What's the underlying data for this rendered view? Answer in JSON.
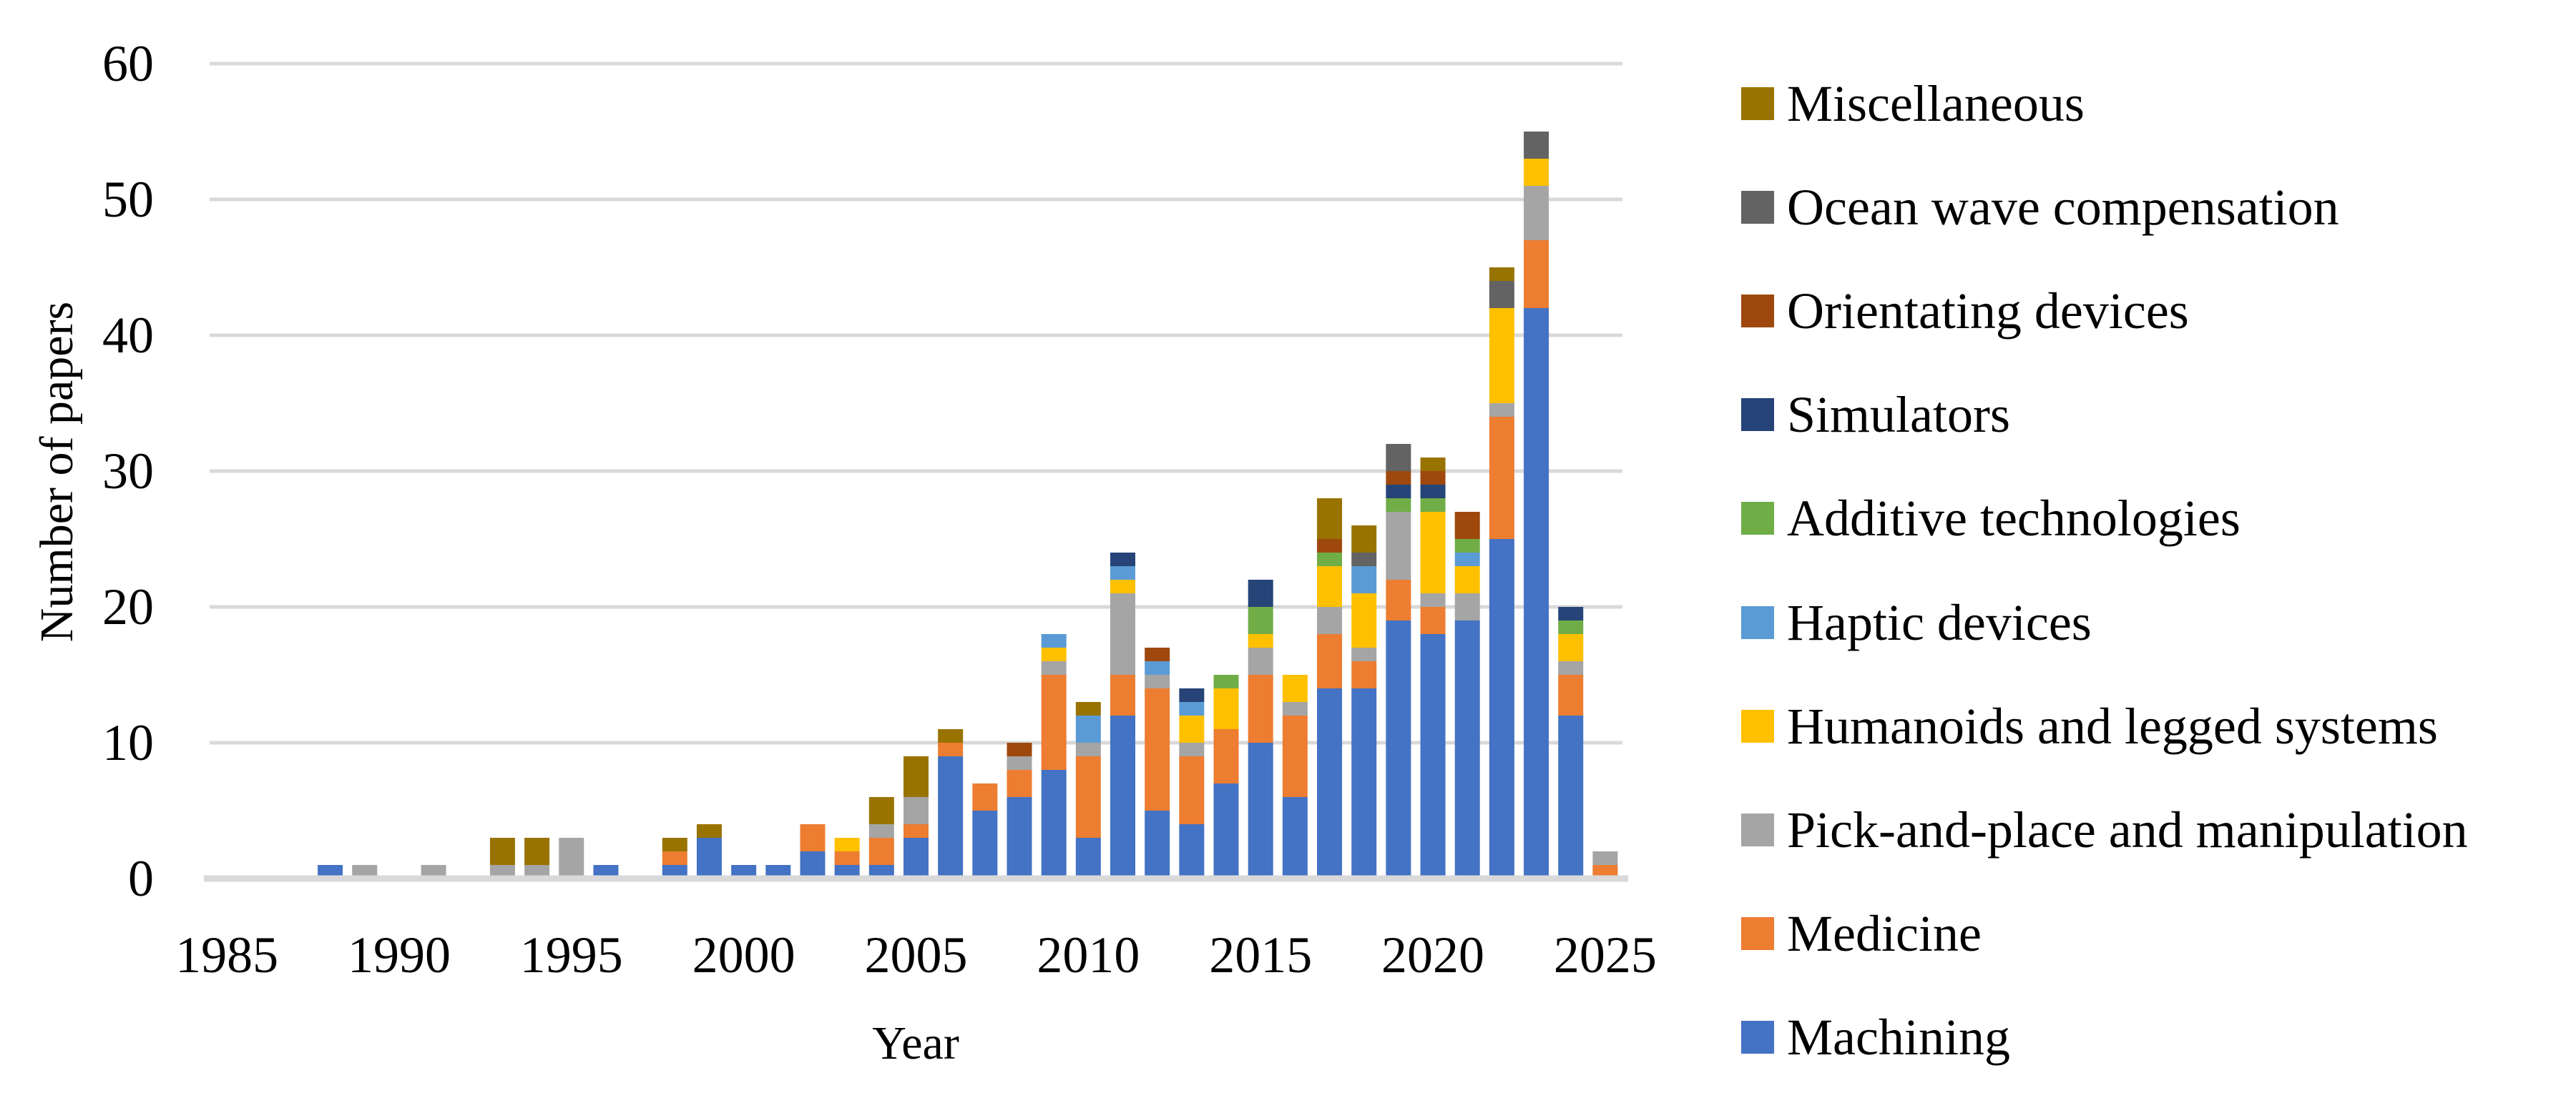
{
  "figure": {
    "y_axis_title": "Number of papers",
    "x_axis_title": "Year"
  },
  "chart_data": {
    "type": "bar",
    "stacked": true,
    "title": "",
    "xlabel": "Year",
    "ylabel": "Number of papers",
    "ylim": [
      0,
      60
    ],
    "yticks": [
      0,
      10,
      20,
      30,
      40,
      50,
      60
    ],
    "xticks": [
      1985,
      1990,
      1995,
      2000,
      2005,
      2010,
      2015,
      2020,
      2025
    ],
    "grid": true,
    "legend_position": "right",
    "legend_order_top_to_bottom": [
      "Miscellaneous",
      "Ocean wave compensation",
      "Orientating devices",
      "Simulators",
      "Additive technologies",
      "Haptic devices",
      "Humanoids and legged systems",
      "Pick-and-place and manipulation",
      "Medicine",
      "Machining"
    ],
    "grid_color": "#D9D9D9",
    "axis_line_color": "#D9D9D9",
    "text_color": "#000000",
    "categories": [
      1985,
      1986,
      1987,
      1988,
      1989,
      1990,
      1991,
      1992,
      1993,
      1994,
      1995,
      1996,
      1997,
      1998,
      1999,
      2000,
      2001,
      2002,
      2003,
      2004,
      2005,
      2006,
      2007,
      2008,
      2009,
      2010,
      2011,
      2012,
      2013,
      2014,
      2015,
      2016,
      2017,
      2018,
      2019,
      2020,
      2021,
      2022,
      2023,
      2024,
      2025
    ],
    "series": [
      {
        "name": "Machining",
        "color": "#4472C4",
        "values": [
          0,
          0,
          0,
          1,
          0,
          0,
          0,
          0,
          0,
          0,
          0,
          1,
          0,
          1,
          3,
          1,
          1,
          2,
          1,
          1,
          3,
          9,
          5,
          6,
          8,
          3,
          12,
          5,
          4,
          7,
          10,
          6,
          14,
          14,
          19,
          18,
          19,
          25,
          42,
          12,
          0
        ]
      },
      {
        "name": "Medicine",
        "color": "#ED7D31",
        "values": [
          0,
          0,
          0,
          0,
          0,
          0,
          0,
          0,
          0,
          0,
          0,
          0,
          0,
          1,
          0,
          0,
          0,
          2,
          1,
          2,
          1,
          1,
          2,
          2,
          7,
          6,
          3,
          9,
          5,
          4,
          5,
          6,
          4,
          2,
          3,
          2,
          0,
          9,
          5,
          3,
          1
        ]
      },
      {
        "name": "Pick-and-place and manipulation",
        "color": "#A5A5A5",
        "values": [
          0,
          0,
          0,
          0,
          1,
          0,
          1,
          0,
          1,
          1,
          3,
          0,
          0,
          0,
          0,
          0,
          0,
          0,
          0,
          1,
          2,
          0,
          0,
          1,
          1,
          1,
          6,
          1,
          1,
          0,
          2,
          1,
          2,
          1,
          5,
          1,
          2,
          1,
          4,
          1,
          1
        ]
      },
      {
        "name": "Humanoids and legged systems",
        "color": "#FFC000",
        "values": [
          0,
          0,
          0,
          0,
          0,
          0,
          0,
          0,
          0,
          0,
          0,
          0,
          0,
          0,
          0,
          0,
          0,
          0,
          1,
          0,
          0,
          0,
          0,
          0,
          1,
          0,
          1,
          0,
          2,
          3,
          1,
          2,
          3,
          4,
          0,
          6,
          2,
          7,
          2,
          2,
          0
        ]
      },
      {
        "name": "Haptic devices",
        "color": "#5B9BD5",
        "values": [
          0,
          0,
          0,
          0,
          0,
          0,
          0,
          0,
          0,
          0,
          0,
          0,
          0,
          0,
          0,
          0,
          0,
          0,
          0,
          0,
          0,
          0,
          0,
          0,
          1,
          2,
          1,
          1,
          1,
          0,
          0,
          0,
          0,
          2,
          0,
          0,
          1,
          0,
          0,
          0,
          0
        ]
      },
      {
        "name": "Additive technologies",
        "color": "#70AD47",
        "values": [
          0,
          0,
          0,
          0,
          0,
          0,
          0,
          0,
          0,
          0,
          0,
          0,
          0,
          0,
          0,
          0,
          0,
          0,
          0,
          0,
          0,
          0,
          0,
          0,
          0,
          0,
          0,
          0,
          0,
          1,
          2,
          0,
          1,
          0,
          1,
          1,
          1,
          0,
          0,
          1,
          0
        ]
      },
      {
        "name": "Simulators",
        "color": "#264478",
        "values": [
          0,
          0,
          0,
          0,
          0,
          0,
          0,
          0,
          0,
          0,
          0,
          0,
          0,
          0,
          0,
          0,
          0,
          0,
          0,
          0,
          0,
          0,
          0,
          0,
          0,
          0,
          1,
          0,
          1,
          0,
          2,
          0,
          0,
          0,
          1,
          1,
          0,
          0,
          0,
          1,
          0
        ]
      },
      {
        "name": "Orientating devices",
        "color": "#9E480E",
        "values": [
          0,
          0,
          0,
          0,
          0,
          0,
          0,
          0,
          0,
          0,
          0,
          0,
          0,
          0,
          0,
          0,
          0,
          0,
          0,
          0,
          0,
          0,
          0,
          1,
          0,
          0,
          0,
          1,
          0,
          0,
          0,
          0,
          1,
          0,
          1,
          1,
          2,
          0,
          0,
          0,
          0
        ]
      },
      {
        "name": "Ocean wave compensation",
        "color": "#636363",
        "values": [
          0,
          0,
          0,
          0,
          0,
          0,
          0,
          0,
          0,
          0,
          0,
          0,
          0,
          0,
          0,
          0,
          0,
          0,
          0,
          0,
          0,
          0,
          0,
          0,
          0,
          0,
          0,
          0,
          0,
          0,
          0,
          0,
          0,
          1,
          2,
          0,
          0,
          2,
          2,
          0,
          0
        ]
      },
      {
        "name": "Miscellaneous",
        "color": "#997300",
        "values": [
          0,
          0,
          0,
          0,
          0,
          0,
          0,
          0,
          2,
          2,
          0,
          0,
          0,
          1,
          1,
          0,
          0,
          0,
          0,
          2,
          3,
          1,
          0,
          0,
          0,
          1,
          0,
          0,
          0,
          0,
          0,
          0,
          3,
          2,
          0,
          1,
          0,
          1,
          0,
          0,
          0
        ]
      }
    ]
  }
}
